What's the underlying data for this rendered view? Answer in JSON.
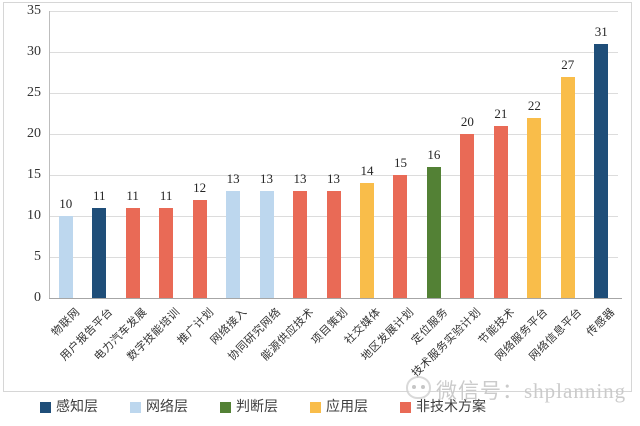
{
  "chart_data": {
    "type": "bar",
    "title": "",
    "xlabel": "",
    "ylabel": "",
    "ylim": [
      0,
      35
    ],
    "yticks": [
      0,
      5,
      10,
      15,
      20,
      25,
      30,
      35
    ],
    "grid": true,
    "categories": [
      "物联网",
      "用户报告平台",
      "电力汽车发展",
      "数字技能培训",
      "推广计划",
      "网络接入",
      "协同研究网络",
      "能源供应技术",
      "项目策划",
      "社交媒体",
      "地区发展计划",
      "定位服务",
      "技术服务实验计划",
      "节能技术",
      "网络服务平台",
      "网络信息平台",
      "传感器"
    ],
    "values": [
      10,
      11,
      11,
      11,
      12,
      13,
      13,
      13,
      13,
      14,
      15,
      16,
      20,
      21,
      22,
      27,
      31
    ],
    "bar_groups": [
      "网络层",
      "感知层",
      "非技术方案",
      "非技术方案",
      "非技术方案",
      "网络层",
      "网络层",
      "非技术方案",
      "非技术方案",
      "应用层",
      "非技术方案",
      "判断层",
      "非技术方案",
      "非技术方案",
      "应用层",
      "应用层",
      "感知层"
    ],
    "legend_position": "bottom",
    "legend": {
      "items": [
        {
          "label": "感知层",
          "color": "#1F4E79"
        },
        {
          "label": "网络层",
          "color": "#BDD7EE"
        },
        {
          "label": "判断层",
          "color": "#538135"
        },
        {
          "label": "应用层",
          "color": "#F9BD4A"
        },
        {
          "label": "非技术方案",
          "color": "#E96A56"
        }
      ]
    },
    "colors": {
      "gridline": "#dcdcdc",
      "axis": "#a6a6a6",
      "value_label": "#262626",
      "tick_label": "#333333"
    }
  },
  "watermark": {
    "text": "微信号：shplanning",
    "icon": "wechat-mascot-icon"
  }
}
